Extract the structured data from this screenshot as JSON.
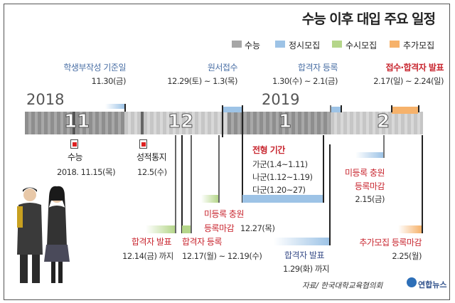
{
  "title": "수능 이후 대입 주요 일정",
  "legend": [
    {
      "label": "수능",
      "color": "#a6a6a6"
    },
    {
      "label": "정시모집",
      "color": "#9dc3e6"
    },
    {
      "label": "수시모집",
      "color": "#b5d68a"
    },
    {
      "label": "추가모집",
      "color": "#f6b26b"
    }
  ],
  "years": {
    "y2018": "2018",
    "y2019": "2019"
  },
  "months": [
    "11",
    "12",
    "1",
    "2"
  ],
  "top_events": [
    {
      "title": "학생부작성 기준일",
      "date": "11.30(금)"
    },
    {
      "title": "원서접수",
      "date": "12.29(토) ~ 1.3(목)"
    },
    {
      "title": "합격자 등록",
      "date": "1.30(수) ~ 2.1(금)"
    },
    {
      "title": "접수·합격자 발표",
      "date": "2.17(일) ~ 2.24(일)"
    }
  ],
  "csat": {
    "title": "수능",
    "date": "2018. 11.15(목)"
  },
  "scores": {
    "title": "성적통지",
    "date": "12.5(수)"
  },
  "period": {
    "title": "전형 기간",
    "lines": [
      "가군(1.4~1.11)",
      "나군(1.12~1.19)",
      "다군(1.20~27)"
    ]
  },
  "susi_unreg": {
    "title": "미등록 충원",
    "title2": "등록마감",
    "date": "12.27(목)"
  },
  "susi_announce": {
    "title": "합격자 발표",
    "date": "12.14(금) 까지"
  },
  "susi_register": {
    "title": "합격자 등록",
    "date": "12.17(월) ~ 12.19(수)"
  },
  "jeongsi_announce": {
    "title": "합격자 발표",
    "date": "1.29(화) 까지"
  },
  "jeongsi_unreg": {
    "title": "미등록 충원",
    "title2": "등록마감",
    "date": "2.15(금)"
  },
  "extra_deadline": {
    "title": "추가모집 등록마감",
    "date": "2.25(월)"
  },
  "source": "자료/ 한국대학교육협의회",
  "logo": "연합뉴스"
}
